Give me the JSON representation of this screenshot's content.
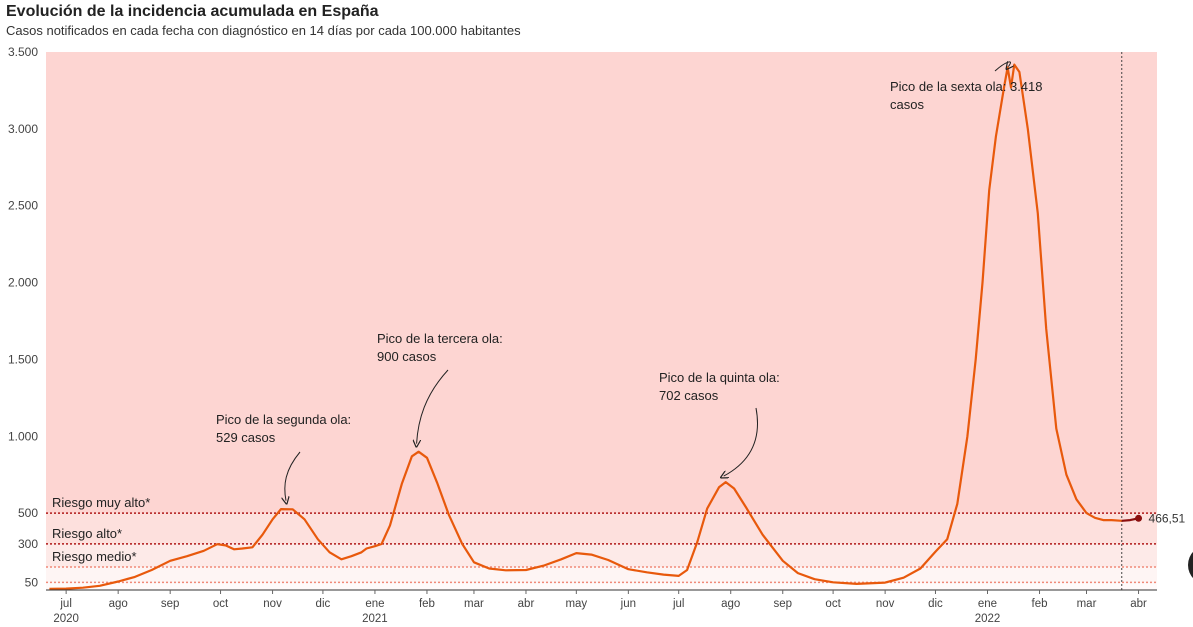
{
  "header": {
    "title": "Evolución de la incidencia acumulada en España",
    "subtitle": "Casos notificados en cada fecha con diagnóstico en 14 días por cada 100.000 habitantes"
  },
  "chart_data": {
    "type": "line",
    "title": "Evolución de la incidencia acumulada en España",
    "subtitle": "Casos notificados en cada fecha con diagnóstico en 14 días por cada 100.000 habitantes",
    "xlabel": "",
    "ylabel": "",
    "ylim": [
      0,
      3500
    ],
    "xlim": [
      "2020-06-19",
      "2022-04-12"
    ],
    "yticks": [
      {
        "value": 50,
        "label": "50"
      },
      {
        "value": 300,
        "label": "300"
      },
      {
        "value": 500,
        "label": "500"
      },
      {
        "value": 1000,
        "label": "1.000"
      },
      {
        "value": 1500,
        "label": "1.500"
      },
      {
        "value": 2000,
        "label": "2.000"
      },
      {
        "value": 2500,
        "label": "2.500"
      },
      {
        "value": 3000,
        "label": "3.000"
      },
      {
        "value": 3500,
        "label": "3.500"
      }
    ],
    "xticks": [
      {
        "date": "2020-07-01",
        "label": "jul",
        "year": "2020"
      },
      {
        "date": "2020-08-01",
        "label": "ago"
      },
      {
        "date": "2020-09-01",
        "label": "sep"
      },
      {
        "date": "2020-10-01",
        "label": "oct"
      },
      {
        "date": "2020-11-01",
        "label": "nov"
      },
      {
        "date": "2020-12-01",
        "label": "dic"
      },
      {
        "date": "2021-01-01",
        "label": "ene",
        "year": "2021"
      },
      {
        "date": "2021-02-01",
        "label": "feb"
      },
      {
        "date": "2021-03-01",
        "label": "mar"
      },
      {
        "date": "2021-04-01",
        "label": "abr"
      },
      {
        "date": "2021-05-01",
        "label": "may"
      },
      {
        "date": "2021-06-01",
        "label": "jun"
      },
      {
        "date": "2021-07-01",
        "label": "jul"
      },
      {
        "date": "2021-08-01",
        "label": "ago"
      },
      {
        "date": "2021-09-01",
        "label": "sep"
      },
      {
        "date": "2021-10-01",
        "label": "oct"
      },
      {
        "date": "2021-11-01",
        "label": "nov"
      },
      {
        "date": "2021-12-01",
        "label": "dic"
      },
      {
        "date": "2022-01-01",
        "label": "ene",
        "year": "2022"
      },
      {
        "date": "2022-02-01",
        "label": "feb"
      },
      {
        "date": "2022-03-01",
        "label": "mar"
      },
      {
        "date": "2022-04-01",
        "label": "abr"
      }
    ],
    "thresholds": [
      {
        "value": 500,
        "label": "Riesgo muy alto*",
        "color": "#b01818"
      },
      {
        "value": 300,
        "label": "Riesgo alto*",
        "color": "#b01818"
      },
      {
        "value": 150,
        "label": "Riesgo medio*",
        "color": "#f08a78"
      },
      {
        "value": 50,
        "label": "",
        "color": "#f08a78"
      }
    ],
    "background_bands": [
      {
        "from": 500,
        "to": 3500,
        "color": "#fdd5d2"
      },
      {
        "from": 300,
        "to": 500,
        "color": "#fde0dd"
      },
      {
        "from": 150,
        "to": 300,
        "color": "#fdeae8"
      },
      {
        "from": 50,
        "to": 150,
        "color": "#fef5f4"
      }
    ],
    "vertical_marker": {
      "date": "2022-03-22"
    },
    "series": [
      {
        "color": "#e8590c",
        "points": [
          [
            "2020-06-21",
            8
          ],
          [
            "2020-07-01",
            9
          ],
          [
            "2020-07-11",
            15
          ],
          [
            "2020-07-21",
            27
          ],
          [
            "2020-08-01",
            55
          ],
          [
            "2020-08-11",
            85
          ],
          [
            "2020-08-21",
            130
          ],
          [
            "2020-09-01",
            190
          ],
          [
            "2020-09-11",
            220
          ],
          [
            "2020-09-21",
            255
          ],
          [
            "2020-09-29",
            298
          ],
          [
            "2020-10-04",
            290
          ],
          [
            "2020-10-09",
            265
          ],
          [
            "2020-10-14",
            270
          ],
          [
            "2020-10-20",
            278
          ],
          [
            "2020-10-26",
            360
          ],
          [
            "2020-11-01",
            460
          ],
          [
            "2020-11-06",
            526
          ],
          [
            "2020-11-13",
            525
          ],
          [
            "2020-11-20",
            460
          ],
          [
            "2020-11-28",
            330
          ],
          [
            "2020-12-05",
            245
          ],
          [
            "2020-12-12",
            200
          ],
          [
            "2020-12-18",
            220
          ],
          [
            "2020-12-24",
            245
          ],
          [
            "2020-12-27",
            270
          ],
          [
            "2021-01-01",
            285
          ],
          [
            "2021-01-05",
            300
          ],
          [
            "2021-01-10",
            420
          ],
          [
            "2021-01-17",
            690
          ],
          [
            "2021-01-23",
            870
          ],
          [
            "2021-01-27",
            900
          ],
          [
            "2021-02-01",
            860
          ],
          [
            "2021-02-07",
            700
          ],
          [
            "2021-02-14",
            490
          ],
          [
            "2021-02-22",
            300
          ],
          [
            "2021-03-01",
            180
          ],
          [
            "2021-03-10",
            140
          ],
          [
            "2021-03-20",
            128
          ],
          [
            "2021-04-01",
            130
          ],
          [
            "2021-04-12",
            160
          ],
          [
            "2021-04-22",
            200
          ],
          [
            "2021-05-01",
            240
          ],
          [
            "2021-05-10",
            230
          ],
          [
            "2021-05-20",
            195
          ],
          [
            "2021-06-01",
            135
          ],
          [
            "2021-06-12",
            115
          ],
          [
            "2021-06-22",
            100
          ],
          [
            "2021-07-01",
            92
          ],
          [
            "2021-07-06",
            130
          ],
          [
            "2021-07-12",
            310
          ],
          [
            "2021-07-18",
            530
          ],
          [
            "2021-07-25",
            668
          ],
          [
            "2021-07-29",
            702
          ],
          [
            "2021-08-03",
            660
          ],
          [
            "2021-08-10",
            540
          ],
          [
            "2021-08-20",
            360
          ],
          [
            "2021-09-01",
            190
          ],
          [
            "2021-09-10",
            110
          ],
          [
            "2021-09-20",
            70
          ],
          [
            "2021-10-01",
            50
          ],
          [
            "2021-10-15",
            40
          ],
          [
            "2021-11-01",
            48
          ],
          [
            "2021-11-12",
            80
          ],
          [
            "2021-11-22",
            140
          ],
          [
            "2021-12-01",
            250
          ],
          [
            "2021-12-08",
            330
          ],
          [
            "2021-12-14",
            560
          ],
          [
            "2021-12-20",
            1000
          ],
          [
            "2021-12-25",
            1500
          ],
          [
            "2021-12-29",
            2000
          ],
          [
            "2022-01-02",
            2600
          ],
          [
            "2022-01-06",
            2950
          ],
          [
            "2022-01-11",
            3280
          ],
          [
            "2022-01-13",
            3400
          ],
          [
            "2022-01-15",
            3270
          ],
          [
            "2022-01-17",
            3418
          ],
          [
            "2022-01-20",
            3370
          ],
          [
            "2022-01-25",
            3000
          ],
          [
            "2022-01-31",
            2450
          ],
          [
            "2022-02-05",
            1700
          ],
          [
            "2022-02-11",
            1050
          ],
          [
            "2022-02-17",
            750
          ],
          [
            "2022-02-23",
            590
          ],
          [
            "2022-03-01",
            500
          ],
          [
            "2022-03-06",
            470
          ],
          [
            "2022-03-11",
            455
          ],
          [
            "2022-03-16",
            455
          ],
          [
            "2022-03-22",
            450
          ],
          [
            "2022-03-27",
            455
          ],
          [
            "2022-04-01",
            466.51
          ]
        ]
      }
    ],
    "last_value_label": "466,51",
    "annotations": [
      {
        "lines": [
          "Pico de la segunda ola:",
          "529 casos"
        ],
        "target": [
          "2020-11-09",
          529
        ]
      },
      {
        "lines": [
          "Pico de la tercera ola:",
          "900 casos"
        ],
        "target": [
          "2021-01-27",
          900
        ]
      },
      {
        "lines": [
          "Pico de la quinta ola:",
          "702 casos"
        ],
        "target": [
          "2021-07-29",
          702
        ]
      },
      {
        "lines": [
          "Pico de la sexta ola: 3.418",
          "casos"
        ],
        "target": [
          "2022-01-17",
          3418
        ]
      }
    ],
    "colors": {
      "line": "#e8590c",
      "threshold_strong": "#b01818",
      "threshold_light": "#f08a78",
      "endpoint": "#8b0f0f"
    }
  }
}
